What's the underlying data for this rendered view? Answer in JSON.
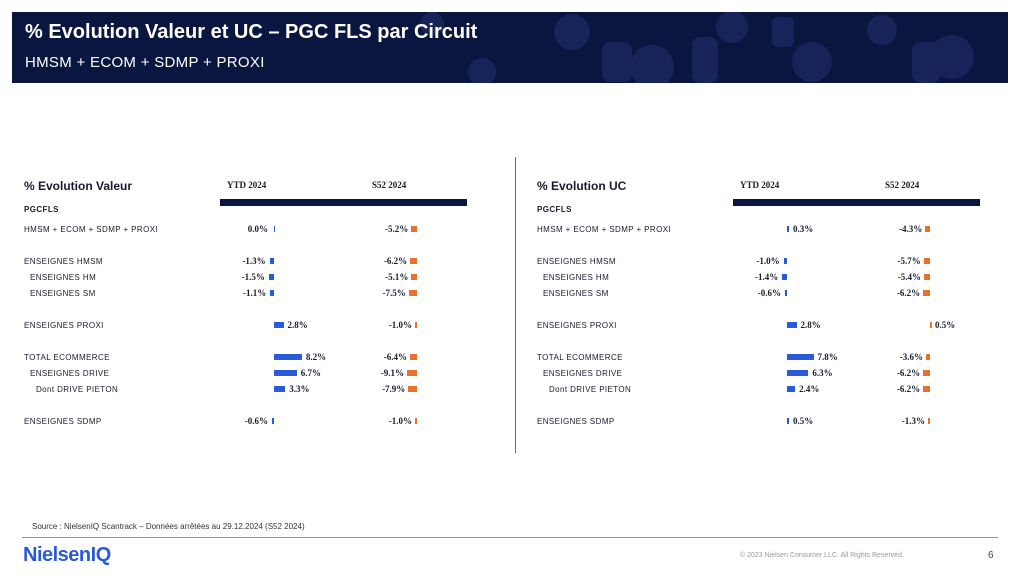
{
  "header": {
    "title": "% Evolution Valeur et UC – PGC FLS par Circuit",
    "subtitle": "HMSM + ECOM + SDMP + PROXI"
  },
  "colors": {
    "header_bg": "#0b1640",
    "ytd_bar": "#2a5bd7",
    "s52_bar": "#e8712e"
  },
  "chart_data": [
    {
      "type": "bar",
      "title": "% Evolution Valeur",
      "column_headers": [
        "YTD 2024",
        "S52 2024"
      ],
      "section_label": "PGCFLS",
      "rows": [
        {
          "label": "HMSM + ECOM + SDMP + PROXI",
          "ytd": 0.0,
          "ytd_label": "0.0%",
          "s52": -5.2,
          "s52_label": "-5.2%"
        },
        {
          "label": "ENSEIGNES HMSM",
          "ytd": -1.3,
          "ytd_label": "-1.3%",
          "s52": -6.2,
          "s52_label": "-6.2%"
        },
        {
          "label": "ENSEIGNES HM",
          "ytd": -1.5,
          "ytd_label": "-1.5%",
          "s52": -5.1,
          "s52_label": "-5.1%"
        },
        {
          "label": "ENSEIGNES SM",
          "ytd": -1.1,
          "ytd_label": "-1.1%",
          "s52": -7.5,
          "s52_label": "-7.5%"
        },
        {
          "label": "ENSEIGNES PROXI",
          "ytd": 2.8,
          "ytd_label": "2.8%",
          "s52": -1.0,
          "s52_label": "-1.0%"
        },
        {
          "label": "TOTAL ECOMMERCE",
          "ytd": 8.2,
          "ytd_label": "8.2%",
          "s52": -6.4,
          "s52_label": "-6.4%"
        },
        {
          "label": "ENSEIGNES DRIVE",
          "ytd": 6.7,
          "ytd_label": "6.7%",
          "s52": -9.1,
          "s52_label": "-9.1%"
        },
        {
          "label": "Dont DRIVE PIETON",
          "ytd": 3.3,
          "ytd_label": "3.3%",
          "s52": -7.9,
          "s52_label": "-7.9%"
        },
        {
          "label": "ENSEIGNES SDMP",
          "ytd": -0.6,
          "ytd_label": "-0.6%",
          "s52": -1.0,
          "s52_label": "-1.0%"
        }
      ]
    },
    {
      "type": "bar",
      "title": "% Evolution UC",
      "column_headers": [
        "YTD 2024",
        "S52 2024"
      ],
      "section_label": "PGCFLS",
      "rows": [
        {
          "label": "HMSM + ECOM + SDMP + PROXI",
          "ytd": 0.3,
          "ytd_label": "0.3%",
          "s52": -4.3,
          "s52_label": "-4.3%"
        },
        {
          "label": "ENSEIGNES HMSM",
          "ytd": -1.0,
          "ytd_label": "-1.0%",
          "s52": -5.7,
          "s52_label": "-5.7%"
        },
        {
          "label": "ENSEIGNES HM",
          "ytd": -1.4,
          "ytd_label": "-1.4%",
          "s52": -5.4,
          "s52_label": "-5.4%"
        },
        {
          "label": "ENSEIGNES SM",
          "ytd": -0.6,
          "ytd_label": "-0.6%",
          "s52": -6.2,
          "s52_label": "-6.2%"
        },
        {
          "label": "ENSEIGNES PROXI",
          "ytd": 2.8,
          "ytd_label": "2.8%",
          "s52": 0.5,
          "s52_label": "0.5%"
        },
        {
          "label": "TOTAL ECOMMERCE",
          "ytd": 7.8,
          "ytd_label": "7.8%",
          "s52": -3.6,
          "s52_label": "-3.6%"
        },
        {
          "label": "ENSEIGNES DRIVE",
          "ytd": 6.3,
          "ytd_label": "6.3%",
          "s52": -6.2,
          "s52_label": "-6.2%"
        },
        {
          "label": "Dont DRIVE PIETON",
          "ytd": 2.4,
          "ytd_label": "2.4%",
          "s52": -6.2,
          "s52_label": "-6.2%"
        },
        {
          "label": "ENSEIGNES SDMP",
          "ytd": 0.5,
          "ytd_label": "0.5%",
          "s52": -1.3,
          "s52_label": "-1.3%"
        }
      ]
    }
  ],
  "footer": {
    "source": "Source : NielsenIQ Scantrack – Données arrêtées au 29.12.2024 (S52 2024)",
    "logo_text": "NielsenIQ",
    "copyright": "© 2023 Nielsen Consumer LLC. All Rights Reserved.",
    "page_number": "6"
  }
}
